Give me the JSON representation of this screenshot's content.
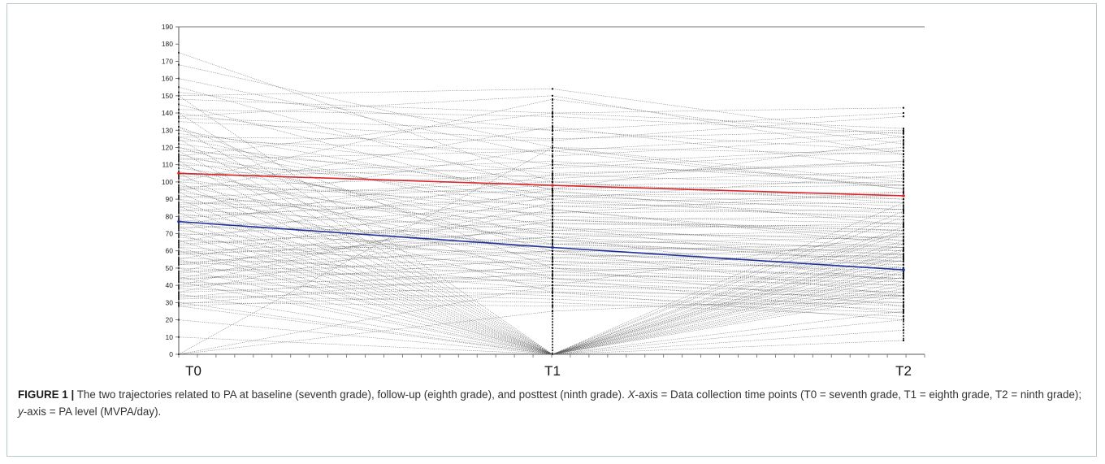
{
  "chart_data": {
    "type": "line",
    "title": "",
    "xlabel": "",
    "ylabel": "",
    "categories": [
      "T0",
      "T1",
      "T2"
    ],
    "yticks": [
      0,
      10,
      20,
      30,
      40,
      50,
      60,
      70,
      80,
      90,
      100,
      110,
      120,
      130,
      140,
      150,
      160,
      170,
      180,
      190
    ],
    "ylim": [
      0,
      190
    ],
    "grid": false,
    "legend": "none",
    "series": [
      {
        "values": [
          105,
          98,
          92
        ],
        "color": "#d9262c"
      },
      {
        "values": [
          77,
          62,
          49
        ],
        "color": "#1f2f9a"
      }
    ],
    "individual_series_color": "#555555",
    "individual_trajectories": [
      [
        28,
        0,
        48
      ],
      [
        35,
        0,
        55
      ],
      [
        42,
        0,
        60
      ],
      [
        50,
        0,
        38
      ],
      [
        55,
        0,
        70
      ],
      [
        60,
        0,
        45
      ],
      [
        62,
        0,
        52
      ],
      [
        66,
        0,
        80
      ],
      [
        70,
        0,
        36
      ],
      [
        74,
        0,
        64
      ],
      [
        78,
        0,
        58
      ],
      [
        82,
        0,
        42
      ],
      [
        86,
        0,
        74
      ],
      [
        90,
        0,
        50
      ],
      [
        94,
        0,
        66
      ],
      [
        100,
        0,
        40
      ],
      [
        105,
        0,
        88
      ],
      [
        112,
        0,
        57
      ],
      [
        118,
        0,
        72
      ],
      [
        125,
        0,
        34
      ],
      [
        132,
        0,
        61
      ],
      [
        140,
        0,
        47
      ],
      [
        150,
        0,
        83
      ],
      [
        0,
        120,
        96
      ],
      [
        0,
        40,
        70
      ],
      [
        0,
        25,
        34
      ],
      [
        10,
        0,
        8
      ],
      [
        20,
        0,
        14
      ],
      [
        30,
        0,
        20
      ],
      [
        45,
        0,
        25
      ],
      [
        175,
        100,
        88
      ],
      [
        168,
        120,
        100
      ],
      [
        160,
        115,
        126
      ],
      [
        155,
        95,
        75
      ],
      [
        152,
        130,
        118
      ],
      [
        148,
        140,
        143
      ],
      [
        145,
        88,
        92
      ],
      [
        140,
        110,
        120
      ],
      [
        138,
        150,
        116
      ],
      [
        135,
        125,
        130
      ],
      [
        130,
        92,
        84
      ],
      [
        128,
        105,
        110
      ],
      [
        126,
        78,
        70
      ],
      [
        124,
        118,
        96
      ],
      [
        122,
        96,
        124
      ],
      [
        120,
        84,
        66
      ],
      [
        118,
        102,
        112
      ],
      [
        116,
        68,
        58
      ],
      [
        114,
        90,
        104
      ],
      [
        112,
        74,
        62
      ],
      [
        110,
        100,
        90
      ],
      [
        108,
        80,
        76
      ],
      [
        106,
        64,
        56
      ],
      [
        104,
        112,
        98
      ],
      [
        102,
        70,
        60
      ],
      [
        100,
        86,
        80
      ],
      [
        98,
        58,
        52
      ],
      [
        96,
        94,
        86
      ],
      [
        94,
        66,
        54
      ],
      [
        92,
        76,
        72
      ],
      [
        90,
        60,
        46
      ],
      [
        88,
        82,
        94
      ],
      [
        86,
        56,
        48
      ],
      [
        84,
        72,
        66
      ],
      [
        82,
        50,
        40
      ],
      [
        80,
        90,
        78
      ],
      [
        78,
        64,
        58
      ],
      [
        76,
        54,
        44
      ],
      [
        74,
        70,
        68
      ],
      [
        72,
        48,
        38
      ],
      [
        70,
        62,
        60
      ],
      [
        68,
        44,
        36
      ],
      [
        66,
        58,
        54
      ],
      [
        64,
        76,
        74
      ],
      [
        62,
        52,
        44
      ],
      [
        60,
        40,
        32
      ],
      [
        58,
        66,
        62
      ],
      [
        56,
        46,
        42
      ],
      [
        54,
        38,
        30
      ],
      [
        52,
        60,
        56
      ],
      [
        50,
        42,
        34
      ],
      [
        48,
        54,
        50
      ],
      [
        46,
        36,
        28
      ],
      [
        44,
        50,
        46
      ],
      [
        42,
        34,
        26
      ],
      [
        40,
        46,
        44
      ],
      [
        38,
        32,
        24
      ],
      [
        36,
        44,
        40
      ],
      [
        34,
        30,
        22
      ],
      [
        32,
        40,
        36
      ],
      [
        30,
        28,
        30
      ],
      [
        28,
        36,
        34
      ],
      [
        115,
        140,
        131
      ],
      [
        142,
        138,
        128
      ],
      [
        100,
        148,
        122
      ],
      [
        95,
        132,
        108
      ],
      [
        85,
        120,
        116
      ],
      [
        75,
        110,
        102
      ],
      [
        65,
        104,
        98
      ],
      [
        55,
        96,
        90
      ],
      [
        48,
        92,
        84
      ],
      [
        40,
        88,
        82
      ],
      [
        36,
        78,
        72
      ],
      [
        44,
        84,
        64
      ],
      [
        52,
        74,
        50
      ],
      [
        58,
        68,
        42
      ],
      [
        120,
        60,
        34
      ],
      [
        132,
        50,
        28
      ],
      [
        110,
        44,
        24
      ],
      [
        96,
        36,
        20
      ],
      [
        150,
        154,
        126
      ],
      [
        137,
        130,
        140
      ],
      [
        126,
        124,
        138
      ],
      [
        113,
        118,
        129
      ],
      [
        103,
        108,
        118
      ],
      [
        97,
        104,
        112
      ],
      [
        91,
        100,
        106
      ],
      [
        87,
        98,
        100
      ],
      [
        83,
        96,
        98
      ],
      [
        79,
        92,
        94
      ],
      [
        73,
        86,
        88
      ],
      [
        69,
        82,
        84
      ],
      [
        63,
        78,
        80
      ],
      [
        59,
        72,
        76
      ],
      [
        53,
        68,
        72
      ],
      [
        47,
        64,
        68
      ],
      [
        43,
        60,
        64
      ],
      [
        39,
        56,
        62
      ],
      [
        33,
        52,
        58
      ],
      [
        29,
        48,
        54
      ]
    ]
  },
  "caption": {
    "label": "FIGURE 1 |",
    "text": " The two trajectories related to PA at baseline (seventh grade), follow-up (eighth grade), and posttest (ninth grade). ",
    "x_em": "X",
    "x_text": "-axis = Data collection time points (T0 = seventh grade, T1 = eighth grade, T2 = ninth grade); ",
    "y_em": "y",
    "y_text": "-axis = PA level (MVPA/day)."
  }
}
